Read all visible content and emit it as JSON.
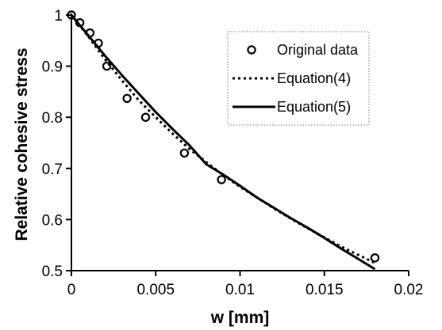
{
  "chart_data": {
    "type": "scatter",
    "title": "",
    "xlabel": "w [mm]",
    "ylabel": "Relative cohesive stress",
    "xlim": [
      0,
      0.02
    ],
    "ylim": [
      0.5,
      1
    ],
    "x_ticks": [
      "0",
      "0.005",
      "0.01",
      "0.015",
      "0.02"
    ],
    "y_ticks": [
      "0.5",
      "0.6",
      "0.7",
      "0.8",
      "0.9",
      "1"
    ],
    "grid": false,
    "legend_position": "top-right",
    "series": [
      {
        "name": "Original data",
        "kind": "markers",
        "marker": "open-circle",
        "x": [
          0,
          0.0005,
          0.0011,
          0.0016,
          0.0021,
          0.0033,
          0.0044,
          0.0067,
          0.0089,
          0.018
        ],
        "y": [
          1.0,
          0.985,
          0.965,
          0.945,
          0.9,
          0.837,
          0.8,
          0.73,
          0.678,
          0.525
        ]
      },
      {
        "name": "Equation(4)",
        "kind": "line",
        "line_style": "dotted",
        "x": [
          0,
          0.001,
          0.002,
          0.003,
          0.004,
          0.005,
          0.006,
          0.007,
          0.008,
          0.009,
          0.01,
          0.011,
          0.012,
          0.013,
          0.014,
          0.015,
          0.016,
          0.017,
          0.018
        ],
        "y": [
          1.0,
          0.958,
          0.913,
          0.872,
          0.833,
          0.8,
          0.768,
          0.738,
          0.712,
          0.687,
          0.664,
          0.643,
          0.622,
          0.602,
          0.583,
          0.565,
          0.547,
          0.531,
          0.515
        ]
      },
      {
        "name": "Equation(5)",
        "kind": "line",
        "line_style": "solid",
        "x": [
          0,
          0.001,
          0.002,
          0.003,
          0.004,
          0.005,
          0.006,
          0.007,
          0.008,
          0.009,
          0.01,
          0.011,
          0.012,
          0.013,
          0.014,
          0.015,
          0.016,
          0.017,
          0.018
        ],
        "y": [
          1.0,
          0.96,
          0.92,
          0.882,
          0.846,
          0.81,
          0.777,
          0.745,
          0.708,
          0.688,
          0.666,
          0.643,
          0.623,
          0.603,
          0.584,
          0.564,
          0.543,
          0.523,
          0.503
        ]
      }
    ]
  }
}
